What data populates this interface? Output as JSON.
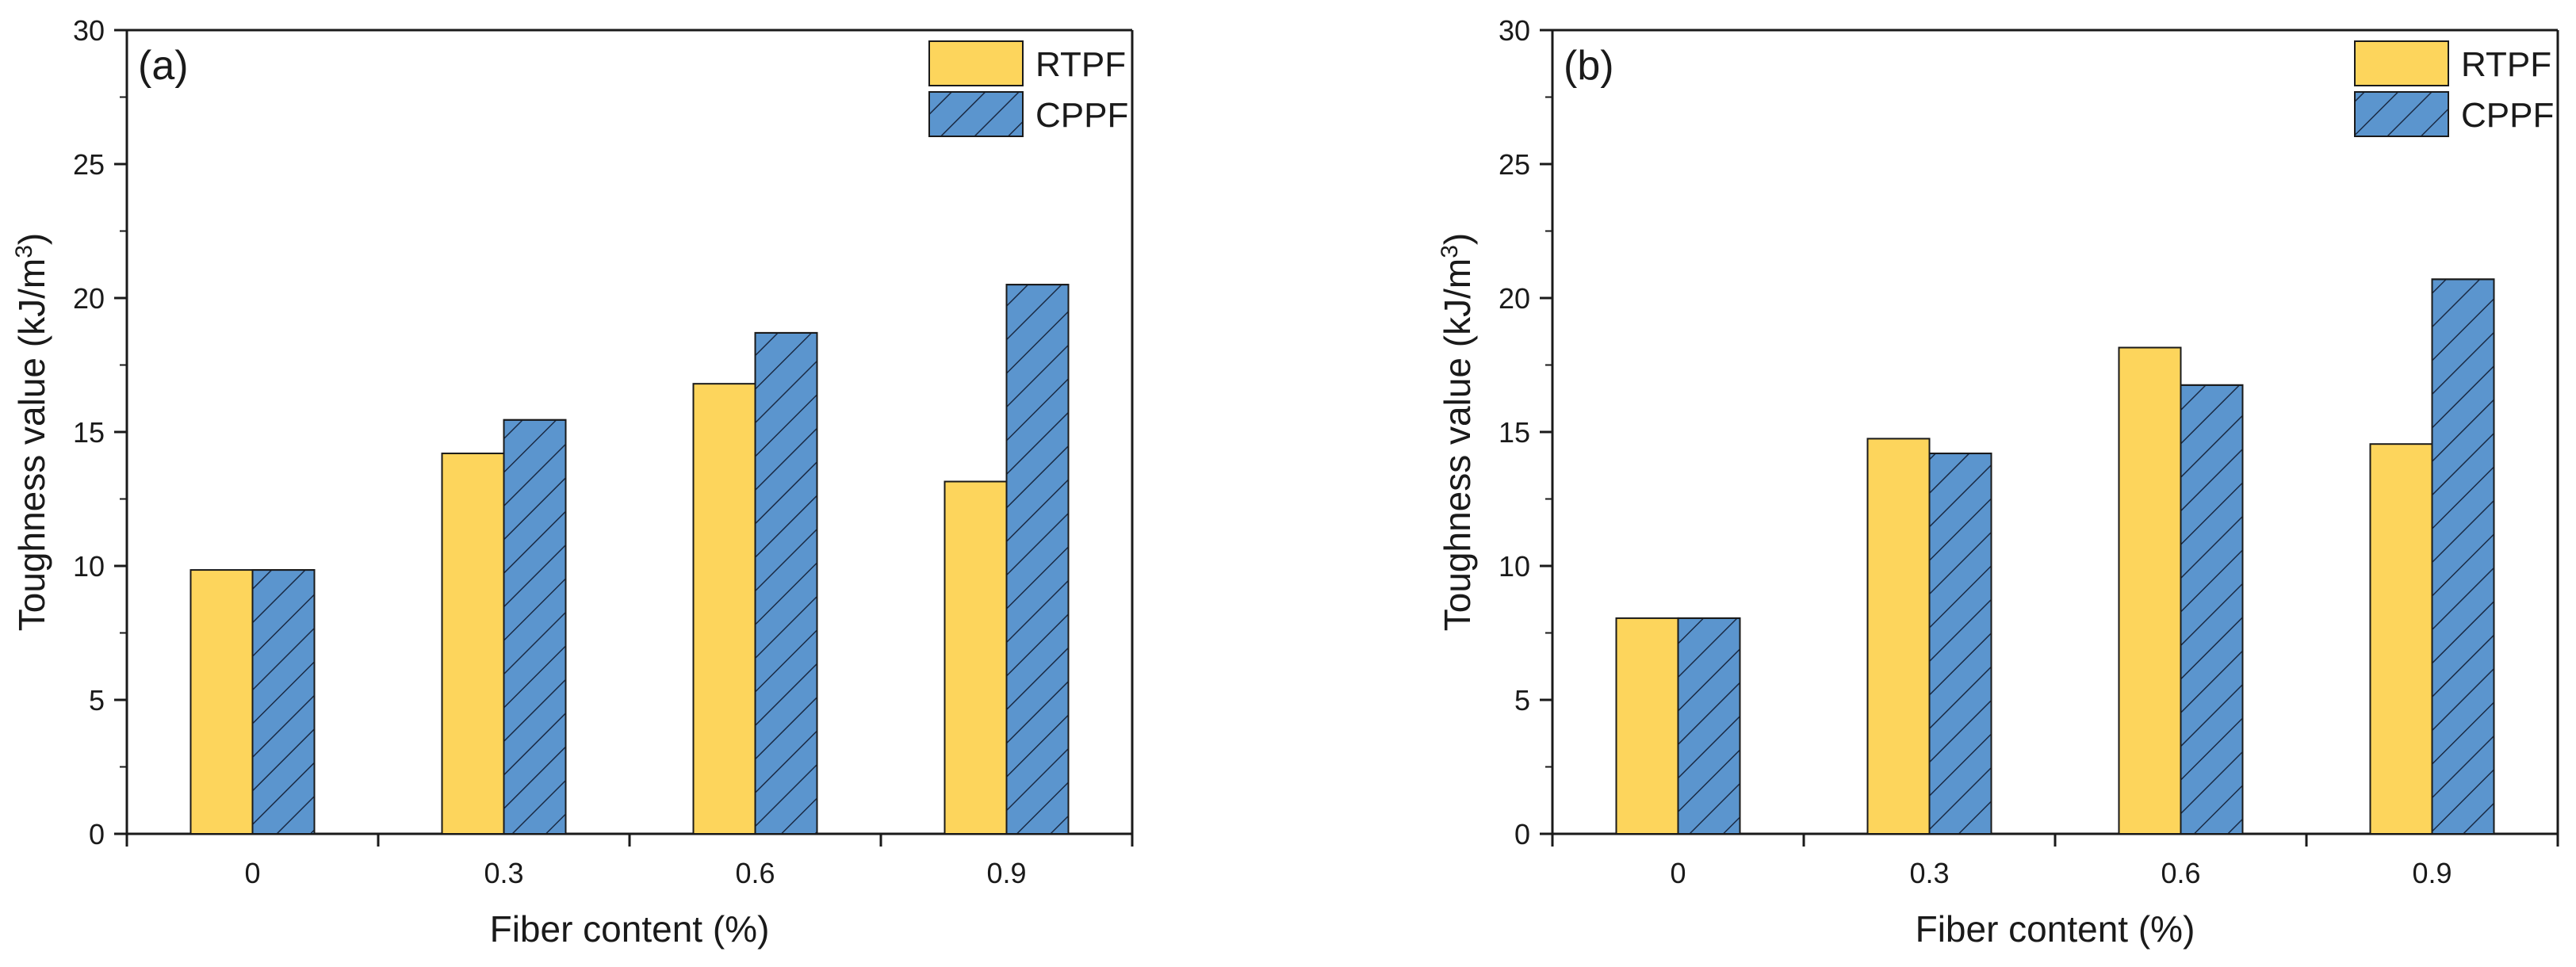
{
  "colors": {
    "rtpf": "#fdd55c",
    "cppf": "#5b95ce",
    "hatch": "#1a2a44",
    "axis": "#1a1a1a"
  },
  "chart_data": [
    {
      "type": "bar",
      "panel_label": "(a)",
      "categories": [
        "0",
        "0.3",
        "0.6",
        "0.9"
      ],
      "series": [
        {
          "name": "RTPF",
          "values": [
            9.85,
            14.2,
            16.8,
            13.15
          ],
          "pattern": "solid"
        },
        {
          "name": "CPPF",
          "values": [
            9.85,
            15.45,
            18.7,
            20.5
          ],
          "pattern": "hatched"
        }
      ],
      "xlabel": "Fiber content (%)",
      "ylabel_main": "Toughness value (kJ/m",
      "ylabel_sup": "3",
      "ylabel_end": ")",
      "ylim": [
        0,
        30
      ],
      "yticks": [
        "0",
        "5",
        "10",
        "15",
        "20",
        "25",
        "30"
      ],
      "legend_position": "top-right",
      "grid": false
    },
    {
      "type": "bar",
      "panel_label": "(b)",
      "categories": [
        "0",
        "0.3",
        "0.6",
        "0.9"
      ],
      "series": [
        {
          "name": "RTPF",
          "values": [
            8.05,
            14.75,
            18.15,
            14.55
          ],
          "pattern": "solid"
        },
        {
          "name": "CPPF",
          "values": [
            8.05,
            14.2,
            16.75,
            20.7
          ],
          "pattern": "hatched"
        }
      ],
      "xlabel": "Fiber content (%)",
      "ylabel_main": "Toughness value (kJ/m",
      "ylabel_sup": "3",
      "ylabel_end": ")",
      "ylim": [
        0,
        30
      ],
      "yticks": [
        "0",
        "5",
        "10",
        "15",
        "20",
        "25",
        "30"
      ],
      "legend_position": "top-right",
      "grid": false
    }
  ]
}
